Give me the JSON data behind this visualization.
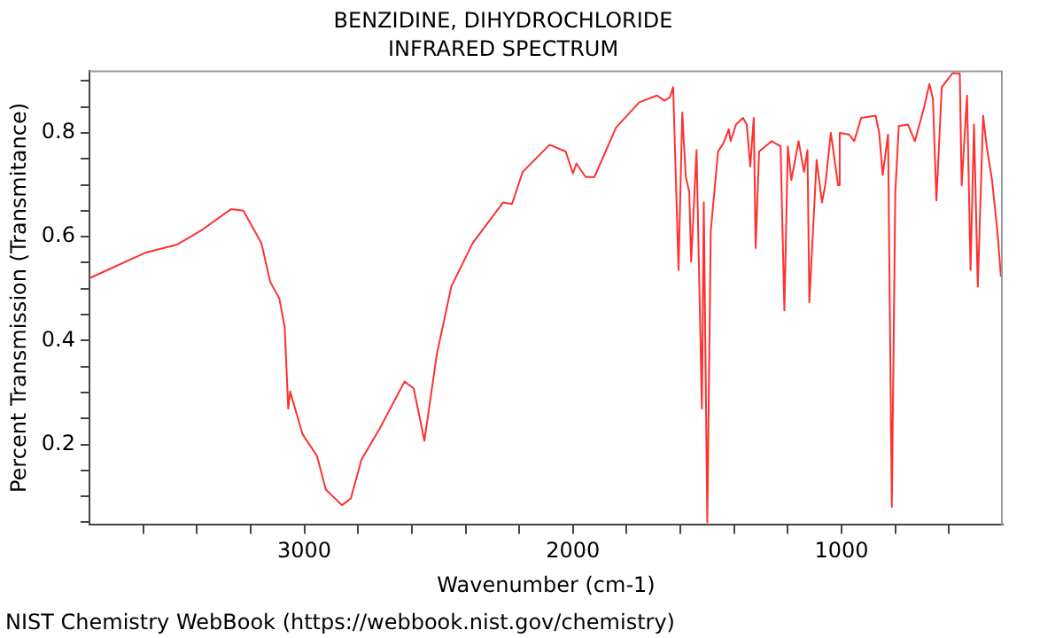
{
  "chart_data": {
    "type": "line",
    "title": "BENZIDINE, DIHYDROCHLORIDE",
    "subtitle": "INFRARED SPECTRUM",
    "xlabel": "Wavenumber (cm-1)",
    "ylabel": "Percent Transmission (Transmitance)",
    "annotations": [
      "NIST Chemistry WebBook (https://webbook.nist.gov/chemistry)"
    ],
    "x": [
      3800,
      3593,
      3473,
      3387,
      3273,
      3227,
      3160,
      3127,
      3093,
      3073,
      3060,
      3053,
      3007,
      2953,
      2920,
      2860,
      2827,
      2787,
      2720,
      2627,
      2593,
      2553,
      2507,
      2453,
      2373,
      2260,
      2227,
      2187,
      2087,
      2027,
      2000,
      1987,
      1953,
      1920,
      1840,
      1753,
      1687,
      1660,
      1640,
      1627,
      1607,
      1593,
      1580,
      1567,
      1560,
      1540,
      1520,
      1513,
      1500,
      1487,
      1460,
      1440,
      1420,
      1413,
      1393,
      1367,
      1353,
      1340,
      1327,
      1320,
      1307,
      1260,
      1227,
      1213,
      1200,
      1187,
      1160,
      1140,
      1127,
      1120,
      1093,
      1073,
      1060,
      1040,
      1027,
      1013,
      1007,
      973,
      953,
      927,
      873,
      860,
      847,
      827,
      813,
      800,
      787,
      753,
      727,
      693,
      673,
      660,
      647,
      627,
      587,
      560,
      553,
      533,
      520,
      507,
      493,
      473,
      460,
      440,
      420,
      407
    ],
    "series": [
      {
        "color": "#ff3030",
        "values": [
          0.52,
          0.569,
          0.585,
          0.611,
          0.653,
          0.65,
          0.588,
          0.513,
          0.481,
          0.425,
          0.269,
          0.302,
          0.22,
          0.178,
          0.113,
          0.083,
          0.096,
          0.171,
          0.23,
          0.321,
          0.308,
          0.207,
          0.373,
          0.504,
          0.588,
          0.666,
          0.663,
          0.725,
          0.777,
          0.764,
          0.722,
          0.741,
          0.715,
          0.715,
          0.81,
          0.859,
          0.872,
          0.862,
          0.868,
          0.888,
          0.536,
          0.839,
          0.715,
          0.686,
          0.552,
          0.767,
          0.269,
          0.666,
          0.05,
          0.611,
          0.764,
          0.78,
          0.807,
          0.784,
          0.816,
          0.829,
          0.816,
          0.735,
          0.829,
          0.578,
          0.764,
          0.784,
          0.774,
          0.458,
          0.774,
          0.709,
          0.784,
          0.725,
          0.767,
          0.474,
          0.748,
          0.666,
          0.702,
          0.8,
          0.751,
          0.699,
          0.8,
          0.797,
          0.784,
          0.829,
          0.833,
          0.8,
          0.719,
          0.797,
          0.08,
          0.686,
          0.813,
          0.816,
          0.784,
          0.849,
          0.894,
          0.865,
          0.67,
          0.888,
          0.915,
          0.914,
          0.699,
          0.872,
          0.536,
          0.816,
          0.504,
          0.833,
          0.774,
          0.709,
          0.611,
          0.523
        ]
      }
    ],
    "xlim": [
      3800,
      400
    ],
    "ylim": [
      0.045,
      0.92
    ],
    "xticks": [
      {
        "value": 3600,
        "label": null
      },
      {
        "value": 3400,
        "label": null
      },
      {
        "value": 3200,
        "label": null
      },
      3000,
      {
        "value": 2800,
        "label": null
      },
      {
        "value": 2600,
        "label": null
      },
      {
        "value": 2400,
        "label": null
      },
      {
        "value": 2200,
        "label": null
      },
      2000,
      {
        "value": 1800,
        "label": null
      },
      {
        "value": 1600,
        "label": null
      },
      {
        "value": 1400,
        "label": null
      },
      {
        "value": 1200,
        "label": null
      },
      1000,
      {
        "value": 800,
        "label": null
      },
      {
        "value": 600,
        "label": null
      }
    ],
    "yticks": [
      {
        "value": 0.05,
        "label": null
      },
      {
        "value": 0.1,
        "label": null
      },
      {
        "value": 0.15,
        "label": null
      },
      {
        "value": 0.2,
        "label": "0.2"
      },
      {
        "value": 0.25,
        "label": null
      },
      {
        "value": 0.3,
        "label": null
      },
      {
        "value": 0.35,
        "label": null
      },
      {
        "value": 0.4,
        "label": "0.4"
      },
      {
        "value": 0.45,
        "label": null
      },
      {
        "value": 0.5,
        "label": null
      },
      {
        "value": 0.55,
        "label": null
      },
      {
        "value": 0.6,
        "label": "0.6"
      },
      {
        "value": 0.65,
        "label": null
      },
      {
        "value": 0.7,
        "label": null
      },
      {
        "value": 0.75,
        "label": null
      },
      {
        "value": 0.8,
        "label": "0.8"
      },
      {
        "value": 0.85,
        "label": null
      },
      {
        "value": 0.9,
        "label": null
      }
    ],
    "grid": false,
    "legend": false,
    "marker": "none",
    "line_style": "solid"
  }
}
